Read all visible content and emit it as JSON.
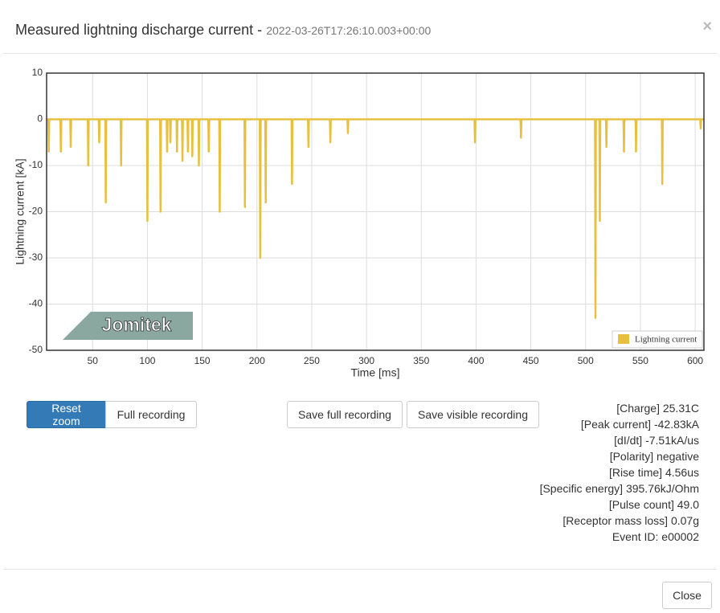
{
  "header": {
    "title": "Measured lightning discharge current -",
    "timestamp": "2022-03-26T17:26:10.003+00:00",
    "close_icon": "×"
  },
  "chart_data": {
    "type": "line",
    "x_label": "Time [ms]",
    "y_label": "Lightning current [kA]",
    "watermark": "Jomitek",
    "xlim": [
      8,
      608
    ],
    "ylim": [
      -50,
      10
    ],
    "xticks": [
      50,
      100,
      150,
      200,
      250,
      300,
      350,
      400,
      450,
      500,
      550,
      600
    ],
    "yticks": [
      10,
      0,
      -10,
      -20,
      -30,
      -40,
      -50
    ],
    "grid": true,
    "legend": "lower right",
    "x": [
      8,
      9.6,
      10,
      10.4,
      20.6,
      21,
      21.4,
      29.6,
      30,
      30.4,
      45.6,
      46,
      46.4,
      55.6,
      56,
      56.4,
      61.6,
      62,
      62.4,
      75.6,
      76,
      76.4,
      99.6,
      100,
      100.4,
      111.6,
      112,
      112.4,
      117.6,
      118,
      118.4,
      120.6,
      121,
      121.4,
      126.6,
      127,
      127.4,
      131.6,
      132,
      132.4,
      136.6,
      137,
      137.4,
      140.6,
      141,
      141.4,
      146.6,
      147,
      147.4,
      155.6,
      156,
      156.4,
      165.6,
      166,
      166.4,
      188.6,
      189,
      189.4,
      202.6,
      203,
      203.4,
      207.6,
      208,
      208.4,
      231.6,
      232,
      232.4,
      246.6,
      247,
      247.4,
      266.6,
      267,
      267.4,
      282.6,
      283,
      283.4,
      398.6,
      399,
      399.4,
      440.6,
      441,
      441.4,
      508.6,
      509,
      509.4,
      512.6,
      513,
      513.4,
      518.6,
      519,
      519.4,
      534.6,
      535,
      535.4,
      545.6,
      546,
      546.4,
      569.6,
      570,
      570.4,
      604.6,
      605,
      605.4,
      608
    ],
    "series": [
      {
        "name": "Lightning current",
        "color": "#e8c040",
        "values": [
          0,
          0,
          -7,
          0,
          0,
          -7,
          0,
          0,
          -6,
          0,
          0,
          -10,
          0,
          0,
          -5,
          0,
          0,
          -18,
          0,
          0,
          -10,
          0,
          0,
          -22,
          0,
          0,
          -20,
          0,
          0,
          -7,
          0,
          0,
          -5,
          0,
          0,
          -7,
          0,
          0,
          -9,
          0,
          0,
          -7,
          0,
          0,
          -8,
          0,
          0,
          -10,
          0,
          0,
          -7,
          0,
          0,
          -20,
          0,
          0,
          -19,
          0,
          0,
          -30,
          0,
          0,
          -18,
          0,
          0,
          -14,
          0,
          0,
          -6,
          0,
          0,
          -5,
          0,
          0,
          -3,
          0,
          0,
          -5,
          0,
          0,
          -4,
          0,
          0,
          -43,
          0,
          0,
          -22,
          0,
          0,
          -6,
          0,
          0,
          -7,
          0,
          0,
          -7,
          0,
          0,
          -14,
          0,
          0,
          -2,
          0,
          0
        ]
      }
    ]
  },
  "buttons": [
    "Reset zoom",
    "Full recording",
    "Save full recording",
    "Save visible recording"
  ],
  "stats": [
    "[Charge] 25.31C",
    "[Peak current] -42.83kA",
    "[dI/dt] -7.51kA/us",
    "[Polarity] negative",
    "[Rise time] 4.56us",
    "[Specific energy] 395.76kJ/Ohm",
    "[Pulse count] 49.0",
    "[Receptor mass loss] 0.07g",
    "Event ID: e00002"
  ],
  "footer": {
    "close": "Close"
  }
}
